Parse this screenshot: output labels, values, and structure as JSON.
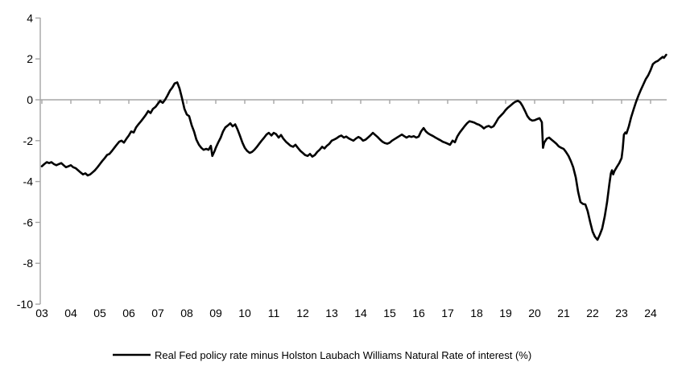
{
  "figure": {
    "background": "#ffffff",
    "axis_color": "#a6a6a6",
    "line_color": "#000000",
    "legend_label": "Real Fed policy rate minus Holston Laubach Williams Natural Rate of interest (%)"
  },
  "chart_data": {
    "type": "line",
    "title": "",
    "xlabel": "",
    "ylabel": "",
    "xlim": [
      2003,
      2024.6
    ],
    "ylim": [
      -10,
      4
    ],
    "grid": "zero-line-only",
    "legend_position": "bottom-center",
    "y_ticks": [
      4,
      2,
      0,
      -2,
      -4,
      -6,
      -8,
      -10
    ],
    "x_tick_years": [
      2003,
      2004,
      2005,
      2006,
      2007,
      2008,
      2009,
      2010,
      2011,
      2012,
      2013,
      2014,
      2015,
      2016,
      2017,
      2018,
      2019,
      2020,
      2021,
      2022,
      2023,
      2024
    ],
    "x_tick_labels": [
      "03",
      "04",
      "05",
      "06",
      "07",
      "08",
      "09",
      "10",
      "11",
      "12",
      "13",
      "14",
      "15",
      "16",
      "17",
      "18",
      "19",
      "20",
      "21",
      "22",
      "23",
      "24"
    ],
    "series": [
      {
        "name": "Real Fed policy rate minus Holston Laubach Williams Natural Rate of interest (%)",
        "color": "#000000",
        "points": [
          [
            2003.0,
            -3.25
          ],
          [
            2003.08,
            -3.15
          ],
          [
            2003.17,
            -3.05
          ],
          [
            2003.25,
            -3.1
          ],
          [
            2003.33,
            -3.05
          ],
          [
            2003.42,
            -3.15
          ],
          [
            2003.5,
            -3.2
          ],
          [
            2003.58,
            -3.15
          ],
          [
            2003.67,
            -3.1
          ],
          [
            2003.75,
            -3.2
          ],
          [
            2003.83,
            -3.3
          ],
          [
            2003.92,
            -3.25
          ],
          [
            2004.0,
            -3.2
          ],
          [
            2004.08,
            -3.3
          ],
          [
            2004.17,
            -3.35
          ],
          [
            2004.25,
            -3.45
          ],
          [
            2004.33,
            -3.55
          ],
          [
            2004.42,
            -3.65
          ],
          [
            2004.5,
            -3.6
          ],
          [
            2004.58,
            -3.7
          ],
          [
            2004.67,
            -3.65
          ],
          [
            2004.75,
            -3.55
          ],
          [
            2004.83,
            -3.45
          ],
          [
            2004.92,
            -3.3
          ],
          [
            2005.0,
            -3.15
          ],
          [
            2005.08,
            -3.0
          ],
          [
            2005.17,
            -2.85
          ],
          [
            2005.25,
            -2.7
          ],
          [
            2005.33,
            -2.65
          ],
          [
            2005.42,
            -2.5
          ],
          [
            2005.5,
            -2.35
          ],
          [
            2005.58,
            -2.2
          ],
          [
            2005.67,
            -2.05
          ],
          [
            2005.75,
            -2.0
          ],
          [
            2005.83,
            -2.1
          ],
          [
            2005.92,
            -1.9
          ],
          [
            2006.0,
            -1.75
          ],
          [
            2006.08,
            -1.55
          ],
          [
            2006.17,
            -1.6
          ],
          [
            2006.25,
            -1.35
          ],
          [
            2006.33,
            -1.2
          ],
          [
            2006.42,
            -1.05
          ],
          [
            2006.5,
            -0.9
          ],
          [
            2006.58,
            -0.75
          ],
          [
            2006.67,
            -0.55
          ],
          [
            2006.75,
            -0.65
          ],
          [
            2006.83,
            -0.45
          ],
          [
            2006.92,
            -0.35
          ],
          [
            2007.0,
            -0.2
          ],
          [
            2007.08,
            -0.05
          ],
          [
            2007.17,
            -0.15
          ],
          [
            2007.25,
            0.0
          ],
          [
            2007.33,
            0.2
          ],
          [
            2007.42,
            0.45
          ],
          [
            2007.5,
            0.6
          ],
          [
            2007.58,
            0.8
          ],
          [
            2007.67,
            0.85
          ],
          [
            2007.75,
            0.55
          ],
          [
            2007.83,
            0.1
          ],
          [
            2007.92,
            -0.45
          ],
          [
            2008.0,
            -0.72
          ],
          [
            2008.08,
            -0.8
          ],
          [
            2008.17,
            -1.25
          ],
          [
            2008.25,
            -1.55
          ],
          [
            2008.33,
            -1.95
          ],
          [
            2008.42,
            -2.2
          ],
          [
            2008.5,
            -2.35
          ],
          [
            2008.58,
            -2.45
          ],
          [
            2008.67,
            -2.4
          ],
          [
            2008.75,
            -2.45
          ],
          [
            2008.83,
            -2.25
          ],
          [
            2008.88,
            -2.75
          ],
          [
            2008.96,
            -2.5
          ],
          [
            2009.0,
            -2.35
          ],
          [
            2009.08,
            -2.1
          ],
          [
            2009.17,
            -1.85
          ],
          [
            2009.25,
            -1.55
          ],
          [
            2009.33,
            -1.35
          ],
          [
            2009.42,
            -1.25
          ],
          [
            2009.5,
            -1.15
          ],
          [
            2009.58,
            -1.3
          ],
          [
            2009.67,
            -1.2
          ],
          [
            2009.75,
            -1.45
          ],
          [
            2009.83,
            -1.75
          ],
          [
            2009.92,
            -2.1
          ],
          [
            2010.0,
            -2.35
          ],
          [
            2010.08,
            -2.5
          ],
          [
            2010.17,
            -2.6
          ],
          [
            2010.25,
            -2.55
          ],
          [
            2010.33,
            -2.45
          ],
          [
            2010.42,
            -2.3
          ],
          [
            2010.5,
            -2.15
          ],
          [
            2010.58,
            -2.0
          ],
          [
            2010.67,
            -1.85
          ],
          [
            2010.75,
            -1.7
          ],
          [
            2010.83,
            -1.62
          ],
          [
            2010.92,
            -1.75
          ],
          [
            2011.0,
            -1.62
          ],
          [
            2011.08,
            -1.68
          ],
          [
            2011.17,
            -1.85
          ],
          [
            2011.25,
            -1.72
          ],
          [
            2011.33,
            -1.9
          ],
          [
            2011.42,
            -2.05
          ],
          [
            2011.5,
            -2.15
          ],
          [
            2011.58,
            -2.25
          ],
          [
            2011.67,
            -2.3
          ],
          [
            2011.75,
            -2.2
          ],
          [
            2011.83,
            -2.35
          ],
          [
            2011.92,
            -2.5
          ],
          [
            2012.0,
            -2.6
          ],
          [
            2012.08,
            -2.7
          ],
          [
            2012.17,
            -2.75
          ],
          [
            2012.25,
            -2.65
          ],
          [
            2012.33,
            -2.78
          ],
          [
            2012.42,
            -2.7
          ],
          [
            2012.5,
            -2.55
          ],
          [
            2012.58,
            -2.45
          ],
          [
            2012.67,
            -2.3
          ],
          [
            2012.75,
            -2.38
          ],
          [
            2012.83,
            -2.25
          ],
          [
            2012.92,
            -2.15
          ],
          [
            2013.0,
            -2.0
          ],
          [
            2013.08,
            -1.95
          ],
          [
            2013.17,
            -1.88
          ],
          [
            2013.25,
            -1.8
          ],
          [
            2013.33,
            -1.75
          ],
          [
            2013.42,
            -1.85
          ],
          [
            2013.5,
            -1.8
          ],
          [
            2013.58,
            -1.88
          ],
          [
            2013.67,
            -1.95
          ],
          [
            2013.75,
            -2.0
          ],
          [
            2013.83,
            -1.9
          ],
          [
            2013.92,
            -1.82
          ],
          [
            2014.0,
            -1.88
          ],
          [
            2014.08,
            -2.0
          ],
          [
            2014.17,
            -1.95
          ],
          [
            2014.25,
            -1.85
          ],
          [
            2014.33,
            -1.75
          ],
          [
            2014.42,
            -1.62
          ],
          [
            2014.5,
            -1.72
          ],
          [
            2014.58,
            -1.82
          ],
          [
            2014.67,
            -1.95
          ],
          [
            2014.75,
            -2.05
          ],
          [
            2014.83,
            -2.12
          ],
          [
            2014.92,
            -2.15
          ],
          [
            2015.0,
            -2.1
          ],
          [
            2015.08,
            -2.0
          ],
          [
            2015.17,
            -1.92
          ],
          [
            2015.25,
            -1.85
          ],
          [
            2015.33,
            -1.78
          ],
          [
            2015.42,
            -1.7
          ],
          [
            2015.5,
            -1.78
          ],
          [
            2015.58,
            -1.85
          ],
          [
            2015.67,
            -1.78
          ],
          [
            2015.75,
            -1.82
          ],
          [
            2015.83,
            -1.78
          ],
          [
            2015.92,
            -1.85
          ],
          [
            2016.0,
            -1.8
          ],
          [
            2016.08,
            -1.55
          ],
          [
            2016.17,
            -1.38
          ],
          [
            2016.25,
            -1.55
          ],
          [
            2016.33,
            -1.65
          ],
          [
            2016.42,
            -1.72
          ],
          [
            2016.5,
            -1.78
          ],
          [
            2016.58,
            -1.85
          ],
          [
            2016.67,
            -1.92
          ],
          [
            2016.75,
            -1.98
          ],
          [
            2016.83,
            -2.05
          ],
          [
            2016.92,
            -2.1
          ],
          [
            2017.0,
            -2.15
          ],
          [
            2017.08,
            -2.2
          ],
          [
            2017.17,
            -2.0
          ],
          [
            2017.25,
            -2.08
          ],
          [
            2017.33,
            -1.8
          ],
          [
            2017.42,
            -1.6
          ],
          [
            2017.5,
            -1.45
          ],
          [
            2017.58,
            -1.3
          ],
          [
            2017.67,
            -1.15
          ],
          [
            2017.75,
            -1.05
          ],
          [
            2017.83,
            -1.08
          ],
          [
            2017.92,
            -1.12
          ],
          [
            2018.0,
            -1.18
          ],
          [
            2018.08,
            -1.22
          ],
          [
            2018.17,
            -1.3
          ],
          [
            2018.25,
            -1.4
          ],
          [
            2018.33,
            -1.32
          ],
          [
            2018.42,
            -1.28
          ],
          [
            2018.5,
            -1.35
          ],
          [
            2018.58,
            -1.3
          ],
          [
            2018.67,
            -1.1
          ],
          [
            2018.75,
            -0.9
          ],
          [
            2018.83,
            -0.78
          ],
          [
            2018.92,
            -0.65
          ],
          [
            2019.0,
            -0.5
          ],
          [
            2019.08,
            -0.38
          ],
          [
            2019.17,
            -0.28
          ],
          [
            2019.25,
            -0.18
          ],
          [
            2019.33,
            -0.1
          ],
          [
            2019.42,
            -0.05
          ],
          [
            2019.5,
            -0.12
          ],
          [
            2019.58,
            -0.3
          ],
          [
            2019.67,
            -0.55
          ],
          [
            2019.75,
            -0.8
          ],
          [
            2019.83,
            -0.95
          ],
          [
            2019.92,
            -1.02
          ],
          [
            2020.0,
            -1.0
          ],
          [
            2020.08,
            -0.95
          ],
          [
            2020.17,
            -0.9
          ],
          [
            2020.25,
            -1.1
          ],
          [
            2020.29,
            -2.35
          ],
          [
            2020.33,
            -2.1
          ],
          [
            2020.42,
            -1.9
          ],
          [
            2020.5,
            -1.85
          ],
          [
            2020.58,
            -1.95
          ],
          [
            2020.67,
            -2.05
          ],
          [
            2020.75,
            -2.15
          ],
          [
            2020.83,
            -2.28
          ],
          [
            2020.92,
            -2.35
          ],
          [
            2021.0,
            -2.4
          ],
          [
            2021.08,
            -2.55
          ],
          [
            2021.17,
            -2.75
          ],
          [
            2021.25,
            -3.0
          ],
          [
            2021.33,
            -3.3
          ],
          [
            2021.42,
            -3.8
          ],
          [
            2021.5,
            -4.5
          ],
          [
            2021.58,
            -5.0
          ],
          [
            2021.67,
            -5.1
          ],
          [
            2021.75,
            -5.12
          ],
          [
            2021.83,
            -5.45
          ],
          [
            2021.92,
            -6.0
          ],
          [
            2022.0,
            -6.45
          ],
          [
            2022.08,
            -6.7
          ],
          [
            2022.17,
            -6.85
          ],
          [
            2022.25,
            -6.6
          ],
          [
            2022.33,
            -6.3
          ],
          [
            2022.42,
            -5.7
          ],
          [
            2022.5,
            -5.0
          ],
          [
            2022.58,
            -4.1
          ],
          [
            2022.63,
            -3.6
          ],
          [
            2022.67,
            -3.45
          ],
          [
            2022.71,
            -3.65
          ],
          [
            2022.75,
            -3.5
          ],
          [
            2022.83,
            -3.3
          ],
          [
            2022.92,
            -3.1
          ],
          [
            2023.0,
            -2.85
          ],
          [
            2023.04,
            -2.4
          ],
          [
            2023.08,
            -1.7
          ],
          [
            2023.13,
            -1.6
          ],
          [
            2023.17,
            -1.65
          ],
          [
            2023.25,
            -1.3
          ],
          [
            2023.33,
            -0.85
          ],
          [
            2023.42,
            -0.45
          ],
          [
            2023.5,
            -0.1
          ],
          [
            2023.58,
            0.2
          ],
          [
            2023.67,
            0.5
          ],
          [
            2023.75,
            0.75
          ],
          [
            2023.83,
            1.0
          ],
          [
            2023.92,
            1.2
          ],
          [
            2024.0,
            1.45
          ],
          [
            2024.08,
            1.75
          ],
          [
            2024.17,
            1.85
          ],
          [
            2024.25,
            1.9
          ],
          [
            2024.33,
            2.0
          ],
          [
            2024.42,
            2.1
          ],
          [
            2024.46,
            2.05
          ],
          [
            2024.54,
            2.2
          ]
        ]
      }
    ]
  }
}
